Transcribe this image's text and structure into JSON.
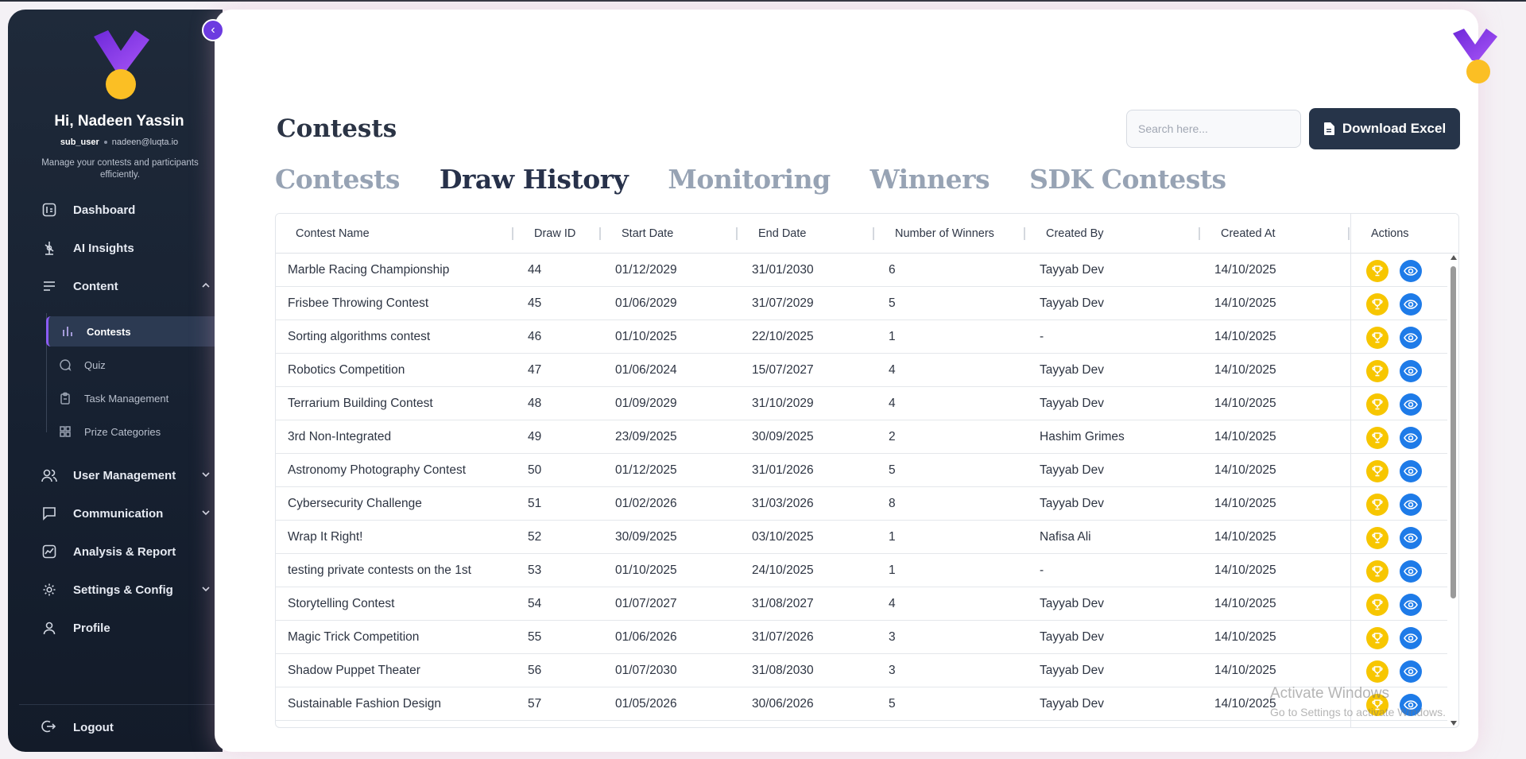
{
  "sidebar": {
    "greeting": "Hi, Nadeen Yassin",
    "role": "sub_user",
    "email": "nadeen@luqta.io",
    "tagline": "Manage your contests and participants efficiently.",
    "collapse_icon": "chevron-left-icon",
    "nav": [
      {
        "label": "Dashboard",
        "icon": "dashboard-icon"
      },
      {
        "label": "AI Insights",
        "icon": "ai-insights-icon"
      },
      {
        "label": "Content",
        "icon": "content-icon",
        "expanded": true
      },
      {
        "label": "User Management",
        "icon": "users-icon"
      },
      {
        "label": "Communication",
        "icon": "chat-icon"
      },
      {
        "label": "Analysis & Report",
        "icon": "report-icon"
      },
      {
        "label": "Settings & Config",
        "icon": "gear-icon"
      },
      {
        "label": "Profile",
        "icon": "profile-icon"
      }
    ],
    "content_sub": [
      {
        "label": "Contests",
        "icon": "bar-chart-icon",
        "active": true
      },
      {
        "label": "Quiz",
        "icon": "quiz-icon"
      },
      {
        "label": "Task Management",
        "icon": "clipboard-icon"
      },
      {
        "label": "Prize Categories",
        "icon": "grid-icon"
      }
    ],
    "logout": "Logout"
  },
  "main": {
    "title": "Contests",
    "search_placeholder": "Search here...",
    "download_label": "Download Excel",
    "tabs": [
      {
        "label": "Contests",
        "active": false
      },
      {
        "label": "Draw History",
        "active": true
      },
      {
        "label": "Monitoring",
        "active": false
      },
      {
        "label": "Winners",
        "active": false
      },
      {
        "label": "SDK Contests",
        "active": false
      }
    ]
  },
  "table": {
    "columns": [
      "Contest Name",
      "Draw ID",
      "Start Date",
      "End Date",
      "Number of Winners",
      "Created By",
      "Created At",
      "Actions"
    ],
    "rows": [
      [
        "Marble Racing Championship",
        "44",
        "01/12/2029",
        "31/01/2030",
        "6",
        "Tayyab Dev",
        "14/10/2025"
      ],
      [
        "Frisbee Throwing Contest",
        "45",
        "01/06/2029",
        "31/07/2029",
        "5",
        "Tayyab Dev",
        "14/10/2025"
      ],
      [
        "Sorting algorithms contest",
        "46",
        "01/10/2025",
        "22/10/2025",
        "1",
        "-",
        "14/10/2025"
      ],
      [
        "Robotics Competition",
        "47",
        "01/06/2024",
        "15/07/2027",
        "4",
        "Tayyab Dev",
        "14/10/2025"
      ],
      [
        "Terrarium Building Contest",
        "48",
        "01/09/2029",
        "31/10/2029",
        "4",
        "Tayyab Dev",
        "14/10/2025"
      ],
      [
        "3rd Non-Integrated",
        "49",
        "23/09/2025",
        "30/09/2025",
        "2",
        "Hashim Grimes",
        "14/10/2025"
      ],
      [
        "Astronomy Photography Contest",
        "50",
        "01/12/2025",
        "31/01/2026",
        "5",
        "Tayyab Dev",
        "14/10/2025"
      ],
      [
        "Cybersecurity Challenge",
        "51",
        "01/02/2026",
        "31/03/2026",
        "8",
        "Tayyab Dev",
        "14/10/2025"
      ],
      [
        "Wrap It Right!",
        "52",
        "30/09/2025",
        "03/10/2025",
        "1",
        "Nafisa Ali",
        "14/10/2025"
      ],
      [
        "testing private contests on the 1st",
        "53",
        "01/10/2025",
        "24/10/2025",
        "1",
        "-",
        "14/10/2025"
      ],
      [
        "Storytelling Contest",
        "54",
        "01/07/2027",
        "31/08/2027",
        "4",
        "Tayyab Dev",
        "14/10/2025"
      ],
      [
        "Magic Trick Competition",
        "55",
        "01/06/2026",
        "31/07/2026",
        "3",
        "Tayyab Dev",
        "14/10/2025"
      ],
      [
        "Shadow Puppet Theater",
        "56",
        "01/07/2030",
        "31/08/2030",
        "3",
        "Tayyab Dev",
        "14/10/2025"
      ],
      [
        "Sustainable Fashion Design",
        "57",
        "01/05/2026",
        "30/06/2026",
        "5",
        "Tayyab Dev",
        "14/10/2025"
      ]
    ],
    "action_icons": [
      "trophy-icon",
      "eye-icon"
    ]
  },
  "watermark": {
    "line1": "Activate Windows",
    "line2": "Go to Settings to activate Windows."
  },
  "colors": {
    "sidebar_bg": "#1b2535",
    "accent_purple": "#7c3aed",
    "brand_yellow": "#f7c600",
    "view_blue": "#1e7be8",
    "primary_button": "#263449"
  }
}
